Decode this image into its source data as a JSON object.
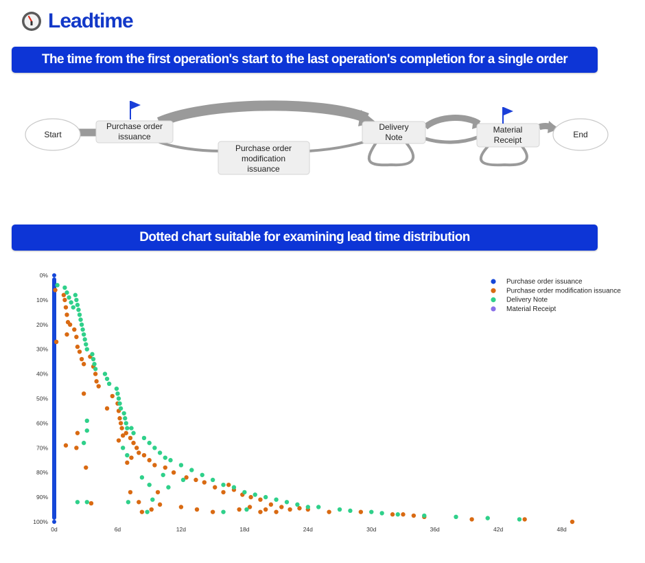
{
  "app": {
    "title": "Leadtime"
  },
  "banner1": {
    "text": "The time from the first operation's start to the last operation's completion for a single order"
  },
  "banner2": {
    "text": "Dotted chart suitable for examining lead time distribution"
  },
  "flow": {
    "start": "Start",
    "end": "End",
    "po_line1": "Purchase order",
    "po_line2": "issuance",
    "pom_line1": "Purchase order",
    "pom_line2": "modification",
    "pom_line3": "issuance",
    "dn_line1": "Delivery",
    "dn_line2": "Note",
    "mr_line1": "Material",
    "mr_line2": "Receipt"
  },
  "colors": {
    "po": "#1547d8",
    "pom": "#d96a12",
    "dn": "#2fd08a",
    "mr": "#8a70e8",
    "banner": "#0d35d6",
    "brand": "#1238c8"
  },
  "chart_data": {
    "type": "scatter",
    "xlabel": "",
    "ylabel": "",
    "xlim": [
      0,
      49
    ],
    "ylim": [
      0,
      100
    ],
    "x_ticks": [
      "0d",
      "6d",
      "12d",
      "18d",
      "24d",
      "30d",
      "36d",
      "42d",
      "48d"
    ],
    "y_ticks": [
      "0%",
      "10%",
      "20%",
      "30%",
      "40%",
      "50%",
      "60%",
      "70%",
      "80%",
      "90%",
      "100%"
    ],
    "legend_position": "top-right",
    "series": [
      {
        "name": "Purchase order issuance",
        "color": "#1547d8",
        "points": [
          [
            0,
            0
          ],
          [
            0,
            5
          ],
          [
            0,
            10
          ],
          [
            0,
            15
          ],
          [
            0,
            20
          ],
          [
            0,
            25
          ],
          [
            0,
            30
          ],
          [
            0,
            35
          ],
          [
            0,
            40
          ],
          [
            0,
            45
          ],
          [
            0,
            50
          ],
          [
            0,
            55
          ],
          [
            0,
            60
          ],
          [
            0,
            65
          ],
          [
            0,
            70
          ],
          [
            0,
            75
          ],
          [
            0,
            80
          ],
          [
            0,
            85
          ],
          [
            0,
            90
          ],
          [
            0,
            95
          ],
          [
            0,
            100
          ]
        ]
      },
      {
        "name": "Purchase order modification issuance",
        "color": "#d96a12",
        "points": [
          [
            0.1,
            6
          ],
          [
            0.2,
            27
          ],
          [
            0.9,
            8
          ],
          [
            1,
            10
          ],
          [
            1.1,
            13
          ],
          [
            1.2,
            16
          ],
          [
            1.3,
            19
          ],
          [
            1.2,
            24
          ],
          [
            1.5,
            20
          ],
          [
            1.9,
            22
          ],
          [
            2.1,
            25
          ],
          [
            2.2,
            29
          ],
          [
            2.4,
            31
          ],
          [
            2.6,
            34
          ],
          [
            2.8,
            36
          ],
          [
            2.8,
            48
          ],
          [
            2.2,
            64
          ],
          [
            2.1,
            70
          ],
          [
            1.1,
            69
          ],
          [
            3,
            78
          ],
          [
            3.4,
            33
          ],
          [
            3.7,
            37
          ],
          [
            3.9,
            40
          ],
          [
            4,
            43
          ],
          [
            4.2,
            45
          ],
          [
            5,
            54
          ],
          [
            5.5,
            49
          ],
          [
            6,
            52
          ],
          [
            6.1,
            55
          ],
          [
            6.2,
            58
          ],
          [
            6.3,
            60
          ],
          [
            6.4,
            62
          ],
          [
            6.5,
            65
          ],
          [
            6.1,
            67
          ],
          [
            6.8,
            64
          ],
          [
            7.2,
            66
          ],
          [
            7.5,
            68
          ],
          [
            7.8,
            70
          ],
          [
            8,
            72
          ],
          [
            6.9,
            76
          ],
          [
            7.3,
            74
          ],
          [
            8.5,
            73
          ],
          [
            9,
            75
          ],
          [
            9.5,
            77
          ],
          [
            10.5,
            78
          ],
          [
            11.3,
            80
          ],
          [
            12.5,
            82
          ],
          [
            13.4,
            83
          ],
          [
            14.2,
            84
          ],
          [
            15.2,
            86
          ],
          [
            16,
            88
          ],
          [
            16.5,
            85
          ],
          [
            17,
            87
          ],
          [
            17.8,
            89
          ],
          [
            18.6,
            90
          ],
          [
            19.5,
            91
          ],
          [
            20.5,
            93
          ],
          [
            21.5,
            94
          ],
          [
            22.3,
            95
          ],
          [
            23.2,
            94.5
          ],
          [
            24,
            95
          ],
          [
            26,
            96
          ],
          [
            8,
            92
          ],
          [
            8.3,
            96
          ],
          [
            9.2,
            95
          ],
          [
            10,
            93
          ],
          [
            12,
            94
          ],
          [
            13.5,
            95
          ],
          [
            15,
            96
          ],
          [
            17.5,
            95
          ],
          [
            18.5,
            94
          ],
          [
            19.5,
            96
          ],
          [
            20,
            95
          ],
          [
            21,
            96
          ],
          [
            29,
            96
          ],
          [
            32,
            97
          ],
          [
            33,
            97
          ],
          [
            34,
            97.5
          ],
          [
            35,
            98
          ],
          [
            39.5,
            99
          ],
          [
            44.5,
            99
          ],
          [
            49,
            100
          ],
          [
            3.5,
            92.5
          ],
          [
            7.2,
            88
          ],
          [
            9.8,
            88
          ]
        ]
      },
      {
        "name": "Delivery Note",
        "color": "#2fd08a",
        "points": [
          [
            0.3,
            4
          ],
          [
            1,
            5
          ],
          [
            1.2,
            7
          ],
          [
            1.4,
            9
          ],
          [
            1.6,
            11
          ],
          [
            1.8,
            13
          ],
          [
            2,
            8
          ],
          [
            2.1,
            10
          ],
          [
            2.2,
            12
          ],
          [
            2.3,
            14
          ],
          [
            2.4,
            16
          ],
          [
            2.5,
            18
          ],
          [
            2.6,
            20
          ],
          [
            2.7,
            22
          ],
          [
            2.8,
            24
          ],
          [
            2.9,
            26
          ],
          [
            3,
            28
          ],
          [
            3.1,
            30
          ],
          [
            3.6,
            32
          ],
          [
            3.7,
            34
          ],
          [
            3.8,
            36
          ],
          [
            3.9,
            38
          ],
          [
            4.8,
            40
          ],
          [
            5,
            42
          ],
          [
            5.2,
            44
          ],
          [
            5.9,
            46
          ],
          [
            6,
            48
          ],
          [
            6.1,
            50
          ],
          [
            6.2,
            52
          ],
          [
            6.3,
            54
          ],
          [
            6.6,
            56
          ],
          [
            6.7,
            58
          ],
          [
            6.8,
            60
          ],
          [
            6.9,
            62
          ],
          [
            7.3,
            62
          ],
          [
            7.5,
            64
          ],
          [
            8.5,
            66
          ],
          [
            9,
            68
          ],
          [
            9.5,
            70
          ],
          [
            10,
            72
          ],
          [
            10.5,
            74
          ],
          [
            11,
            75
          ],
          [
            12,
            77
          ],
          [
            13,
            79
          ],
          [
            14,
            81
          ],
          [
            15,
            83
          ],
          [
            16,
            85
          ],
          [
            17,
            86
          ],
          [
            18,
            88
          ],
          [
            19,
            89
          ],
          [
            20,
            90
          ],
          [
            21,
            91
          ],
          [
            22,
            92
          ],
          [
            23,
            93
          ],
          [
            24,
            94
          ],
          [
            25,
            94
          ],
          [
            27,
            95
          ],
          [
            28,
            95.5
          ],
          [
            30,
            96
          ],
          [
            31,
            96.5
          ],
          [
            32.5,
            97
          ],
          [
            35,
            97.5
          ],
          [
            38,
            98
          ],
          [
            41,
            98.5
          ],
          [
            44,
            99
          ],
          [
            3.1,
            59
          ],
          [
            3.1,
            63
          ],
          [
            2.8,
            68
          ],
          [
            6.5,
            70
          ],
          [
            6.9,
            73
          ],
          [
            8.3,
            82
          ],
          [
            10.3,
            81
          ],
          [
            12.2,
            83
          ],
          [
            9,
            85
          ],
          [
            10.8,
            86
          ],
          [
            9.3,
            91
          ],
          [
            7,
            92
          ],
          [
            8.8,
            96
          ],
          [
            2.2,
            92
          ],
          [
            3.1,
            92
          ],
          [
            18.2,
            95
          ],
          [
            16,
            96
          ]
        ]
      },
      {
        "name": "Material Receipt",
        "color": "#8a70e8",
        "points": []
      }
    ]
  }
}
